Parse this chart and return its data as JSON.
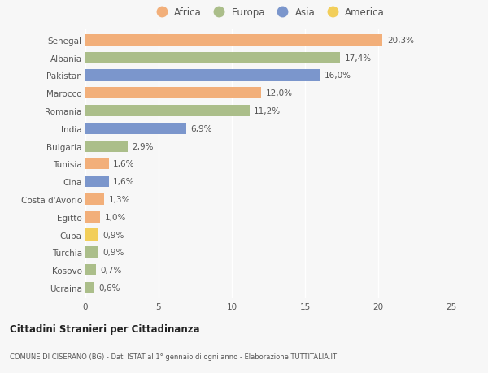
{
  "countries": [
    "Senegal",
    "Albania",
    "Pakistan",
    "Marocco",
    "Romania",
    "India",
    "Bulgaria",
    "Tunisia",
    "Cina",
    "Costa d'Avorio",
    "Egitto",
    "Cuba",
    "Turchia",
    "Kosovo",
    "Ucraina"
  ],
  "values": [
    20.3,
    17.4,
    16.0,
    12.0,
    11.2,
    6.9,
    2.9,
    1.6,
    1.6,
    1.3,
    1.0,
    0.9,
    0.9,
    0.7,
    0.6
  ],
  "labels": [
    "20,3%",
    "17,4%",
    "16,0%",
    "12,0%",
    "11,2%",
    "6,9%",
    "2,9%",
    "1,6%",
    "1,6%",
    "1,3%",
    "1,0%",
    "0,9%",
    "0,9%",
    "0,7%",
    "0,6%"
  ],
  "continents": [
    "Africa",
    "Europa",
    "Asia",
    "Africa",
    "Europa",
    "Asia",
    "Europa",
    "Africa",
    "Asia",
    "Africa",
    "Africa",
    "America",
    "Europa",
    "Europa",
    "Europa"
  ],
  "continent_colors": {
    "Africa": "#F2AF7A",
    "Europa": "#ABBE8A",
    "Asia": "#7B96CC",
    "America": "#F2CE5A"
  },
  "legend_order": [
    "Africa",
    "Europa",
    "Asia",
    "America"
  ],
  "title_bold": "Cittadini Stranieri per Cittadinanza",
  "title_sub": "COMUNE DI CISERANO (BG) - Dati ISTAT al 1° gennaio di ogni anno - Elaborazione TUTTITALIA.IT",
  "xlim": [
    0,
    25
  ],
  "xticks": [
    0,
    5,
    10,
    15,
    20,
    25
  ],
  "background_color": "#f7f7f7",
  "bar_height": 0.65,
  "label_fontsize": 7.5,
  "tick_fontsize": 7.5,
  "legend_fontsize": 8.5
}
